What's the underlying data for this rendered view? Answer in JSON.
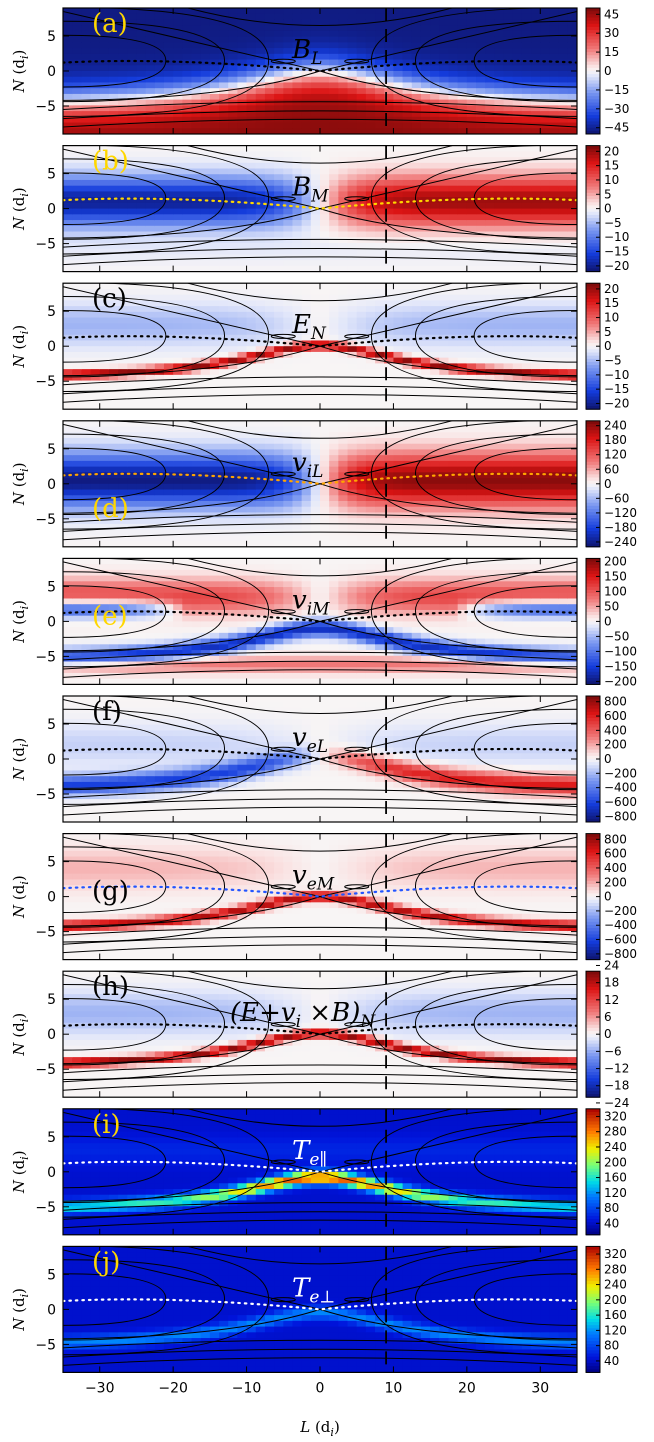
{
  "chart_data": {
    "type": "heatmap",
    "x_axis": {
      "label_main": "L",
      "label_unit": "(d",
      "label_sub": "i",
      "label_close": ")",
      "range": [
        -35,
        35
      ],
      "ticks": [
        -30,
        -20,
        -10,
        0,
        10,
        20,
        30
      ],
      "tick_labels": [
        "−30",
        "−20",
        "−10",
        "0",
        "10",
        "20",
        "30"
      ]
    },
    "y_axis": {
      "label_main": "N",
      "label_unit": "(d",
      "label_sub": "i",
      "label_close": ")",
      "range": [
        -9,
        9
      ],
      "ticks": [
        -5,
        0,
        5
      ],
      "tick_labels": [
        "−5",
        "0",
        "5"
      ]
    },
    "dashed_line_x": 9,
    "panels": [
      {
        "id": "a",
        "letter": "(a)",
        "letter_color": "#ffd700",
        "quantity": "B",
        "sub": "L",
        "quantity_color": "#000000",
        "separatrix_color": "#000000",
        "colormap": "bwr",
        "field": "BL",
        "scale": 50,
        "colorbar_ticks": [
          "45",
          "30",
          "15",
          "0",
          "−15",
          "−30",
          "−45"
        ],
        "colorbar_values": [
          45,
          30,
          15,
          0,
          -15,
          -30,
          -45
        ]
      },
      {
        "id": "b",
        "letter": "(b)",
        "letter_color": "#ffd700",
        "quantity": "B",
        "sub": "M",
        "quantity_color": "#000000",
        "separatrix_color": "#ffd700",
        "colormap": "bwr",
        "field": "BM",
        "scale": 22,
        "colorbar_ticks": [
          "20",
          "15",
          "10",
          "5",
          "0",
          "−5",
          "−10",
          "−15",
          "−20"
        ],
        "colorbar_values": [
          20,
          15,
          10,
          5,
          0,
          -5,
          -10,
          -15,
          -20
        ]
      },
      {
        "id": "c",
        "letter": "(c)",
        "letter_color": "#000000",
        "quantity": "E",
        "sub": "N",
        "quantity_color": "#000000",
        "separatrix_color": "#000000",
        "colormap": "bwr",
        "field": "EN",
        "scale": 22,
        "colorbar_ticks": [
          "20",
          "15",
          "10",
          "5",
          "0",
          "−5",
          "−10",
          "−15",
          "−20"
        ],
        "colorbar_values": [
          20,
          15,
          10,
          5,
          0,
          -5,
          -10,
          -15,
          -20
        ]
      },
      {
        "id": "d",
        "letter": "(d)",
        "letter_color": "#ffd700",
        "quantity": "v",
        "sub": "iL",
        "quantity_color": "#000000",
        "separatrix_color": "#ffa500",
        "colormap": "bwr",
        "field": "ViL",
        "scale": 260,
        "letter_pos": "low",
        "colorbar_ticks": [
          "240",
          "180",
          "120",
          "60",
          "0",
          "−60",
          "−120",
          "−180",
          "−240"
        ],
        "colorbar_values": [
          240,
          180,
          120,
          60,
          0,
          -60,
          -120,
          -180,
          -240
        ]
      },
      {
        "id": "e",
        "letter": "(e)",
        "letter_color": "#ffd700",
        "quantity": "v",
        "sub": "iM",
        "quantity_color": "#000000",
        "separatrix_color": "#000000",
        "colormap": "bwr",
        "field": "ViM",
        "scale": 210,
        "letter_pos": "mid",
        "colorbar_ticks": [
          "200",
          "150",
          "100",
          "50",
          "0",
          "−50",
          "−100",
          "−150",
          "−200"
        ],
        "colorbar_values": [
          200,
          150,
          100,
          50,
          0,
          -50,
          -100,
          -150,
          -200
        ]
      },
      {
        "id": "f",
        "letter": "(f)",
        "letter_color": "#000000",
        "quantity": "v",
        "sub": "eL",
        "quantity_color": "#000000",
        "separatrix_color": "#000000",
        "colormap": "bwr",
        "field": "VeL",
        "scale": 880,
        "colorbar_ticks": [
          "800",
          "600",
          "400",
          "200",
          "0",
          "−200",
          "−400",
          "−600",
          "−800"
        ],
        "colorbar_values": [
          800,
          600,
          400,
          200,
          0,
          -200,
          -400,
          -600,
          -800
        ]
      },
      {
        "id": "g",
        "letter": "(g)",
        "letter_color": "#000000",
        "quantity": "v",
        "sub": "eM",
        "quantity_color": "#000000",
        "separatrix_color": "#2255ff",
        "colormap": "bwr",
        "field": "VeM",
        "scale": 880,
        "letter_pos": "mid",
        "colorbar_ticks": [
          "800",
          "600",
          "400",
          "200",
          "0",
          "−200",
          "−400",
          "−600",
          "−800"
        ],
        "colorbar_values": [
          800,
          600,
          400,
          200,
          0,
          -200,
          -400,
          -600,
          -800
        ]
      },
      {
        "id": "h",
        "letter": "(h)",
        "letter_color": "#000000",
        "quantity": "(E+v",
        "sub": "i",
        "quantity_tail": "×B)",
        "tail_sub": "N",
        "quantity_color": "#000000",
        "separatrix_color": "#000000",
        "colormap": "bwr",
        "field": "EN",
        "scale": 22,
        "colorbar_ticks": [
          "24",
          "18",
          "12",
          "6",
          "0",
          "−6",
          "−12",
          "−18",
          "−24"
        ],
        "colorbar_values": [
          24,
          18,
          12,
          6,
          0,
          -6,
          -12,
          -18,
          -24
        ]
      },
      {
        "id": "i",
        "letter": "(i)",
        "letter_color": "#ffd700",
        "quantity": "T",
        "sub": "e∥",
        "quantity_color": "#ffffff",
        "separatrix_color": "#ffffff",
        "colormap": "jet",
        "field": "Tpar",
        "scale": 340,
        "colorbar_ticks": [
          "320",
          "280",
          "240",
          "200",
          "160",
          "120",
          "80",
          "40"
        ],
        "colorbar_values": [
          320,
          280,
          240,
          200,
          160,
          120,
          80,
          40
        ]
      },
      {
        "id": "j",
        "letter": "(j)",
        "letter_color": "#ffd700",
        "quantity": "T",
        "sub": "e⊥",
        "quantity_color": "#ffffff",
        "separatrix_color": "#ffffff",
        "colormap": "jet",
        "field": "Tperp",
        "scale": 340,
        "colorbar_ticks": [
          "320",
          "280",
          "240",
          "200",
          "160",
          "120",
          "80",
          "40"
        ],
        "colorbar_values": [
          320,
          280,
          240,
          200,
          160,
          120,
          80,
          40
        ]
      }
    ]
  }
}
